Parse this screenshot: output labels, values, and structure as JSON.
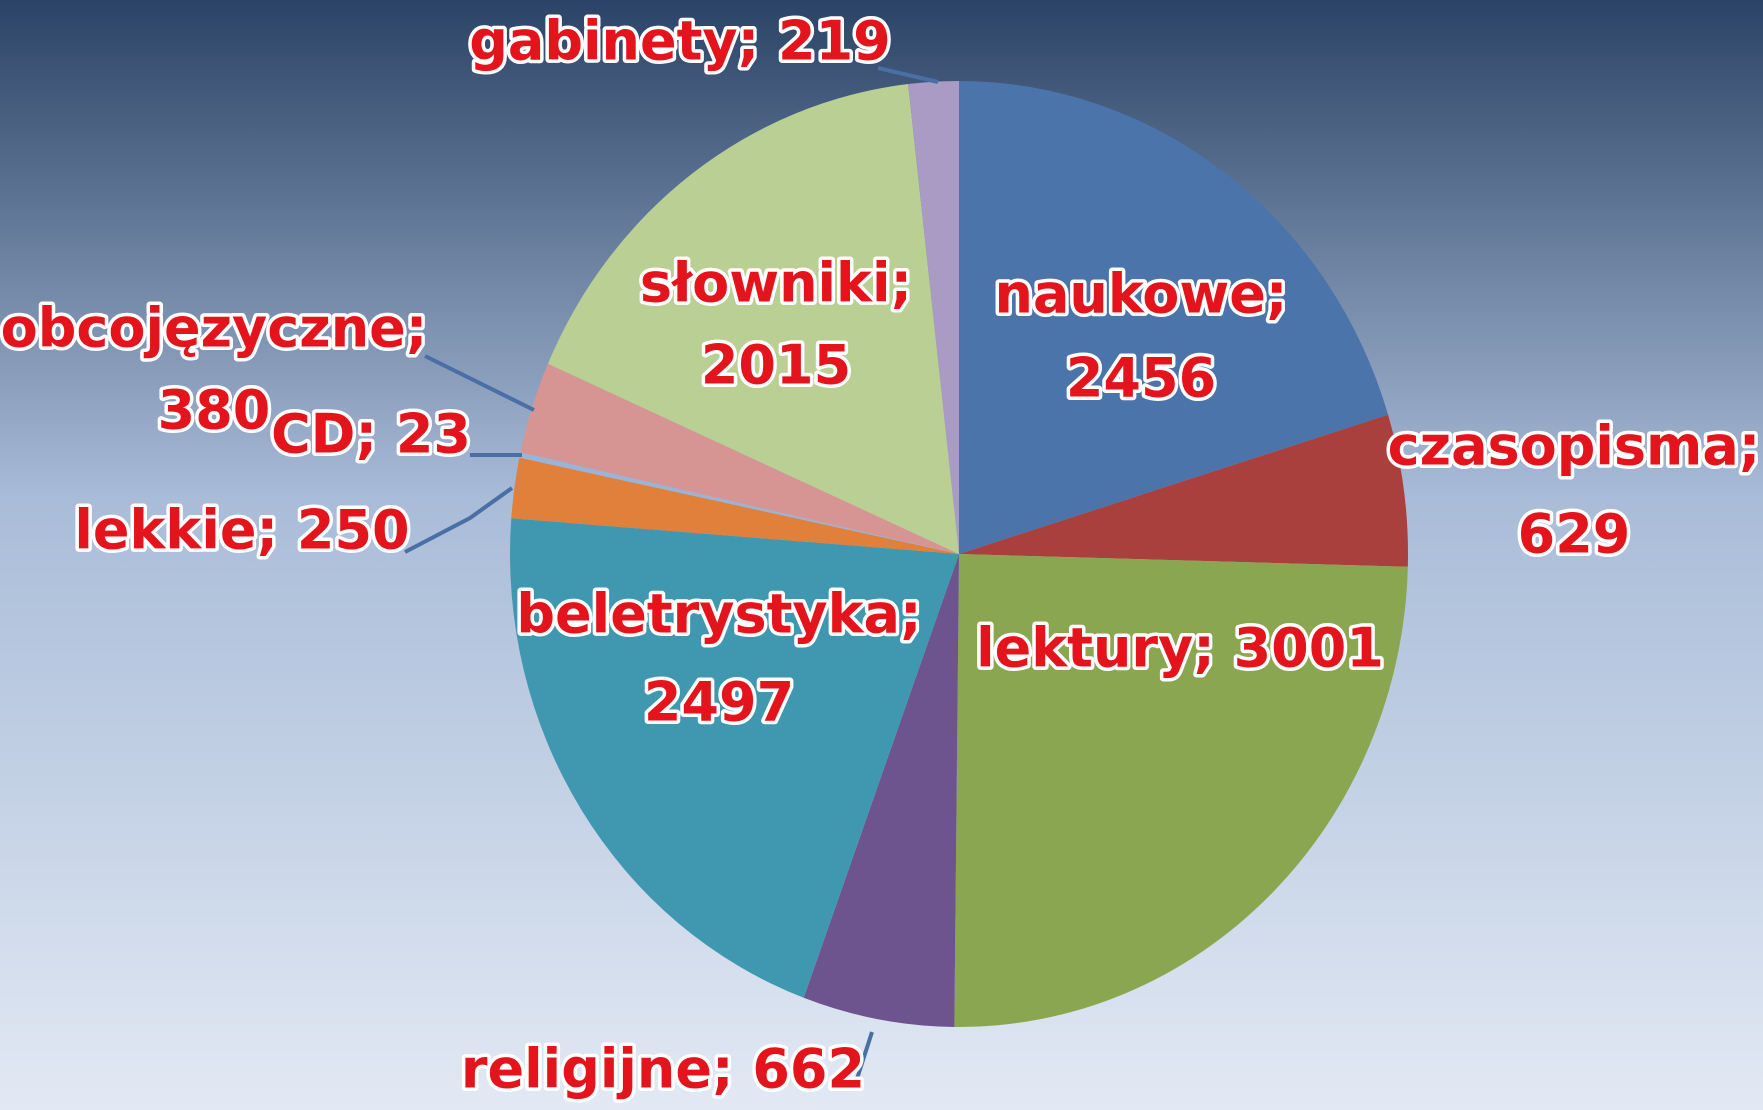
{
  "chart_data": {
    "type": "pie",
    "values": [
      2456,
      629,
      3001,
      662,
      2497,
      250,
      23,
      380,
      2015,
      219
    ],
    "value_labels": [
      [
        "naukowe;",
        "2456"
      ],
      [
        "czasopisma;",
        "629"
      ],
      [
        "lektury; 3001"
      ],
      [
        "religijne; 662"
      ],
      [
        "beletrystyka;",
        "2497"
      ],
      [
        "lekkie; 250"
      ],
      [
        "CD; 23"
      ],
      [
        "obcojęzyczne;",
        "380"
      ],
      [
        "słowniki;",
        "2015"
      ],
      [
        "gabinety; 219"
      ]
    ],
    "colors": [
      "#4a74aa",
      "#a9403d",
      "#8aa651",
      "#6e548f",
      "#3f98b0",
      "#e0803a",
      "#9bb3d6",
      "#d69593",
      "#b9cf94",
      "#a99bc3"
    ]
  }
}
